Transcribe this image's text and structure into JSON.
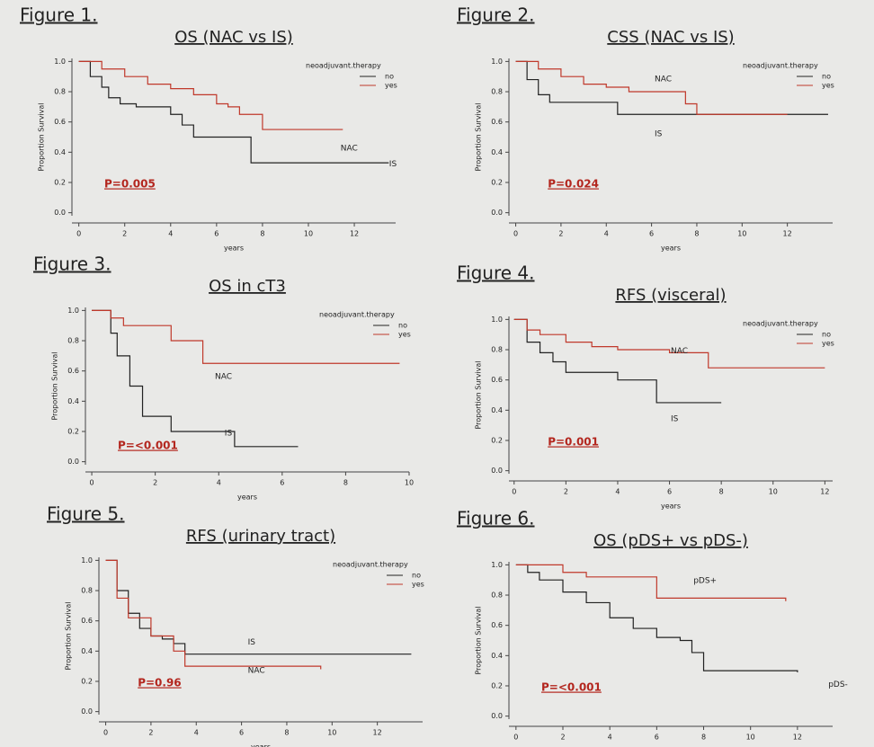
{
  "chart_data": [
    {
      "type": "line",
      "figure": "Figure 1.",
      "title": "OS (NAC vs IS)",
      "x_label": "years",
      "y_label": "Proportion Survival",
      "legend_title": "neoadjuvant.therapy",
      "series": [
        {
          "name": "no",
          "color": "#222222",
          "x": [
            0,
            0.5,
            1,
            1.3,
            1.8,
            2.5,
            4,
            4.5,
            5,
            7.5,
            13.5
          ],
          "values": [
            1,
            0.9,
            0.83,
            0.76,
            0.72,
            0.7,
            0.65,
            0.58,
            0.5,
            0.33,
            0.33
          ]
        },
        {
          "name": "yes",
          "color": "#c0392b",
          "x": [
            0,
            1,
            2,
            3,
            4,
            5,
            6,
            6.5,
            7,
            8,
            11.5
          ],
          "values": [
            1,
            0.95,
            0.9,
            0.85,
            0.82,
            0.78,
            0.72,
            0.7,
            0.65,
            0.55,
            0.55
          ]
        }
      ],
      "annotations": [
        "P=0.005",
        "NAC",
        "IS"
      ],
      "xlim": [
        -0.3,
        13.8
      ],
      "ylim": [
        -0.02,
        1.02
      ],
      "xticks": [
        0,
        2,
        4,
        6,
        8,
        10,
        12
      ],
      "yticks": [
        {
          "value": 0,
          "label": "0.0"
        },
        0.2,
        0.4,
        0.6,
        0.8,
        {
          "value": 1,
          "label": "1.0"
        }
      ]
    },
    {
      "type": "line",
      "figure": "Figure 2.",
      "title": "CSS (NAC vs IS)",
      "x_label": "years",
      "y_label": "Proportion Survival",
      "legend_title": "neoadjuvant.therapy",
      "series": [
        {
          "name": "no",
          "color": "#222222",
          "x": [
            0,
            0.5,
            1,
            1.5,
            4.5,
            13.8
          ],
          "values": [
            1,
            0.88,
            0.78,
            0.73,
            0.65,
            0.65
          ]
        },
        {
          "name": "yes",
          "color": "#c0392b",
          "x": [
            0,
            1,
            2,
            3,
            4,
            5,
            7.5,
            8,
            12
          ],
          "values": [
            1,
            0.95,
            0.9,
            0.85,
            0.83,
            0.8,
            0.72,
            0.65,
            0.65
          ]
        }
      ],
      "annotations": [
        "P=0.024",
        "NAC",
        "IS"
      ],
      "xlim": [
        -0.3,
        14
      ],
      "ylim": [
        -0.02,
        1.02
      ],
      "xticks": [
        0,
        2,
        4,
        6,
        8,
        10,
        12
      ],
      "yticks": [
        {
          "value": 0,
          "label": "0.0"
        },
        0.2,
        0.4,
        0.6,
        0.8,
        {
          "value": 1,
          "label": "1.0"
        }
      ]
    },
    {
      "type": "line",
      "figure": "Figure 3.",
      "title": "OS in cT3",
      "x_label": "years",
      "y_label": "Proportion Survival",
      "legend_title": "neoadjuvant.therapy",
      "series": [
        {
          "name": "no",
          "color": "#222222",
          "x": [
            0,
            0.6,
            0.8,
            1.2,
            1.6,
            2.5,
            4.5,
            6.5
          ],
          "values": [
            1,
            0.85,
            0.7,
            0.5,
            0.3,
            0.2,
            0.1,
            0.1
          ]
        },
        {
          "name": "yes",
          "color": "#c0392b",
          "x": [
            0,
            0.6,
            1,
            2.5,
            3.5,
            9.7
          ],
          "values": [
            1,
            0.95,
            0.9,
            0.8,
            0.65,
            0.65
          ]
        }
      ],
      "annotations": [
        "P=<0.001",
        "NAC",
        "IS"
      ],
      "xlim": [
        -0.2,
        10
      ],
      "ylim": [
        -0.02,
        1.02
      ],
      "xticks": [
        0,
        2,
        4,
        6,
        8,
        10
      ],
      "yticks": [
        {
          "value": 0,
          "label": "0.0"
        },
        0.2,
        0.4,
        0.6,
        0.8,
        {
          "value": 1,
          "label": "1.0"
        }
      ]
    },
    {
      "type": "line",
      "figure": "Figure 4.",
      "title": "RFS (visceral)",
      "x_label": "years",
      "y_label": "Proportion Survival",
      "legend_title": "neoadjuvant.therapy",
      "series": [
        {
          "name": "no",
          "color": "#222222",
          "x": [
            0,
            0.5,
            1,
            1.5,
            2,
            4,
            5.5,
            8
          ],
          "values": [
            1,
            0.85,
            0.78,
            0.72,
            0.65,
            0.6,
            0.45,
            0.45
          ]
        },
        {
          "name": "yes",
          "color": "#c0392b",
          "x": [
            0,
            0.5,
            1,
            2,
            3,
            4,
            6,
            7.5,
            12
          ],
          "values": [
            1,
            0.93,
            0.9,
            0.85,
            0.82,
            0.8,
            0.78,
            0.68,
            0.68
          ]
        }
      ],
      "annotations": [
        "P=0.001",
        "NAC",
        "IS"
      ],
      "xlim": [
        -0.2,
        12.3
      ],
      "ylim": [
        -0.02,
        1.02
      ],
      "xticks": [
        0,
        2,
        4,
        6,
        8,
        10,
        12
      ],
      "yticks": [
        {
          "value": 0,
          "label": "0.0"
        },
        0.2,
        0.4,
        0.6,
        0.8,
        {
          "value": 1,
          "label": "1.0"
        }
      ]
    },
    {
      "type": "line",
      "figure": "Figure 5.",
      "title": "RFS (urinary tract)",
      "x_label": "years",
      "y_label": "Proportion Survival",
      "legend_title": "neoadjuvant.therapy",
      "series": [
        {
          "name": "no",
          "color": "#222222",
          "x": [
            0,
            0.5,
            1,
            1.5,
            2,
            2.5,
            3,
            3.5,
            13.5
          ],
          "values": [
            1,
            0.8,
            0.65,
            0.55,
            0.5,
            0.48,
            0.45,
            0.38,
            0.38
          ]
        },
        {
          "name": "yes",
          "color": "#c0392b",
          "x": [
            0,
            0.5,
            1,
            2,
            3,
            3.5,
            9.5
          ],
          "values": [
            1,
            0.75,
            0.62,
            0.5,
            0.4,
            0.3,
            0.28
          ]
        }
      ],
      "annotations": [
        "P=0.96",
        "NAC",
        "IS"
      ],
      "xlim": [
        -0.3,
        14
      ],
      "ylim": [
        -0.02,
        1.02
      ],
      "xticks": [
        0,
        2,
        4,
        6,
        8,
        10,
        12
      ],
      "yticks": [
        {
          "value": 0,
          "label": "0.0"
        },
        0.2,
        0.4,
        0.6,
        0.8,
        {
          "value": 1,
          "label": "1.0"
        }
      ]
    },
    {
      "type": "line",
      "figure": "Figure 6.",
      "title": "OS (pDS+ vs pDS-)",
      "x_label": "years",
      "y_label": "Proportion Survival",
      "series": [
        {
          "name": "pDS-",
          "color": "#222222",
          "x": [
            0,
            0.5,
            1,
            2,
            3,
            4,
            5,
            6,
            7,
            7.5,
            8,
            12
          ],
          "values": [
            1,
            0.95,
            0.9,
            0.82,
            0.75,
            0.65,
            0.58,
            0.52,
            0.5,
            0.42,
            0.3,
            0.29
          ]
        },
        {
          "name": "pDS+",
          "color": "#c0392b",
          "x": [
            0,
            2,
            3,
            6,
            11.5
          ],
          "values": [
            1,
            0.95,
            0.92,
            0.78,
            0.76
          ]
        }
      ],
      "annotations": [
        "P=<0.001"
      ],
      "xlim": [
        -0.3,
        13.5
      ],
      "ylim": [
        -0.02,
        1.02
      ],
      "xticks": [
        0,
        2,
        4,
        6,
        8,
        10,
        12
      ],
      "yticks": [
        {
          "value": 0,
          "label": "0.0"
        },
        0.2,
        0.4,
        0.6,
        0.8,
        {
          "value": 1,
          "label": "1.0"
        }
      ]
    }
  ]
}
